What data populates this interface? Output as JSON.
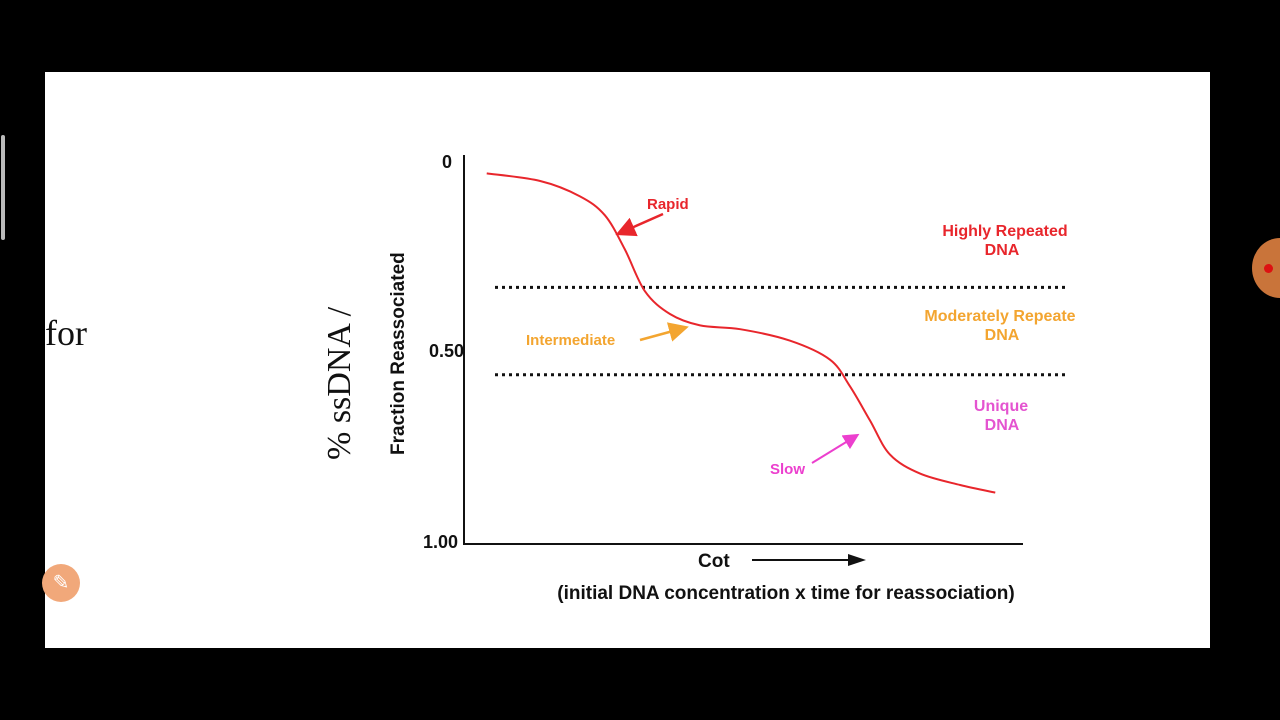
{
  "slide": {
    "side_text": "for"
  },
  "colors": {
    "curve": "#e8262c",
    "rapid": "#e8262c",
    "intermediate": "#f3a530",
    "slow": "#ec3fce",
    "highly": "#e8262c",
    "moderately": "#f3a530",
    "unique": "#e454d0",
    "dashes": "#111111"
  },
  "chart_data": {
    "type": "line",
    "ylabel_outer": "% ssDNA /",
    "ylabel": "Fraction Reassociated",
    "xlabel": "Cot",
    "xlabel_sub": "(initial DNA concentration x time for reassociation)",
    "y_ticks": [
      "0",
      "0.50",
      "1.00"
    ],
    "ylim": [
      0,
      1
    ],
    "y_inverted": true,
    "grid": false,
    "series": [
      {
        "x": [
          3.9,
          13.5,
          20.6,
          25.1,
          28.7,
          32.3,
          36.8,
          42.2,
          49.4,
          58.3,
          65.5,
          69.1,
          72.7,
          76.3,
          81.7,
          88.9,
          95.2
        ],
        "y": [
          0.03,
          0.05,
          0.09,
          0.14,
          0.23,
          0.34,
          0.4,
          0.43,
          0.44,
          0.47,
          0.52,
          0.59,
          0.68,
          0.77,
          0.82,
          0.85,
          0.87
        ]
      }
    ],
    "boundaries": [
      0.33,
      0.56
    ],
    "annotations": {
      "rapid": "Rapid",
      "intermediate": "Intermediate",
      "slow": "Slow"
    },
    "regions": {
      "highly": [
        "Highly Repeated",
        "DNA"
      ],
      "moderately": [
        "Moderately Repeate",
        "DNA"
      ],
      "unique": [
        "Unique",
        "DNA"
      ]
    }
  }
}
